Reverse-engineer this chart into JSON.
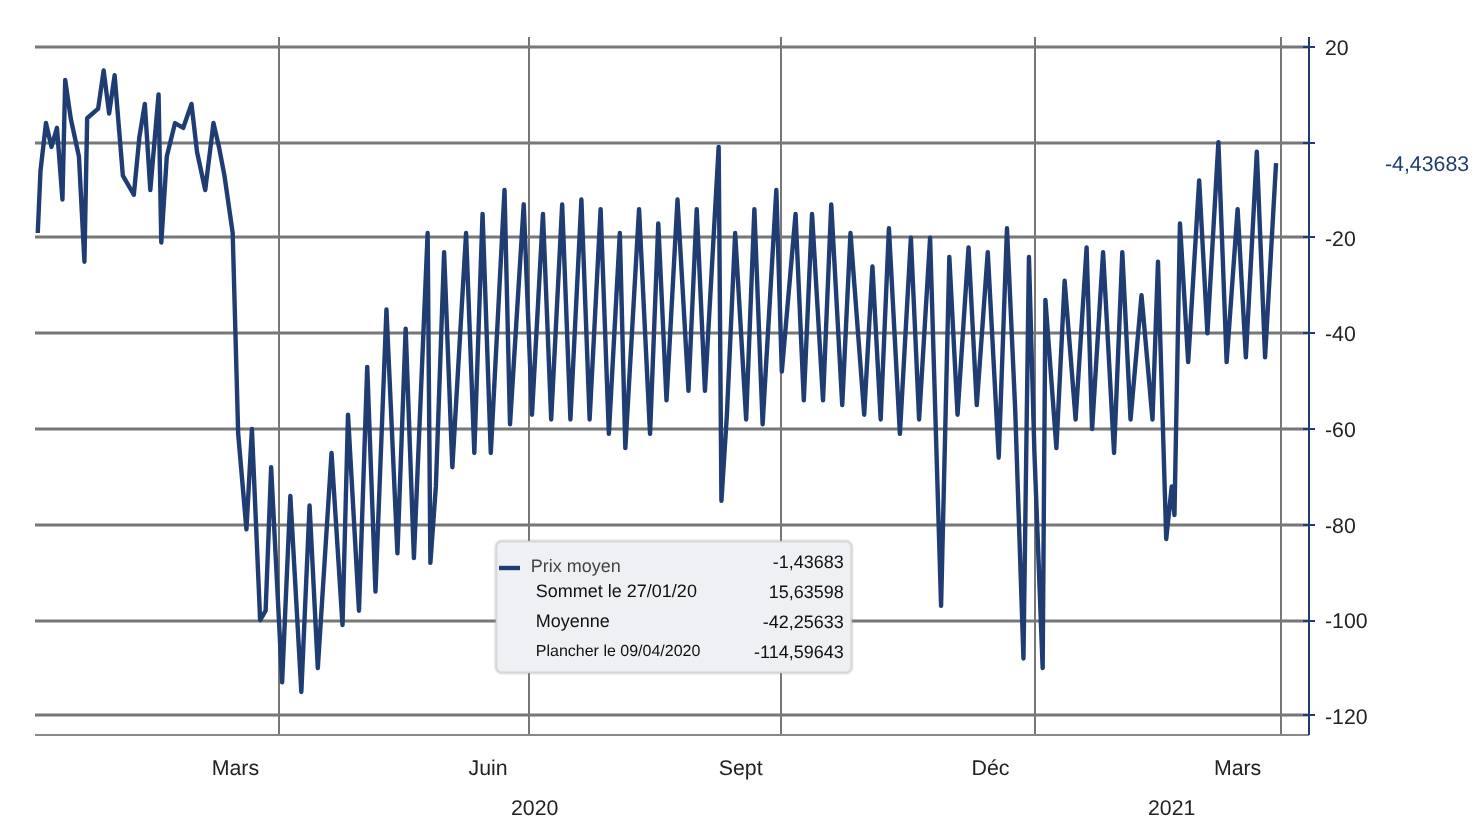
{
  "chart_data": {
    "type": "line",
    "xlim": [
      "2020-01-03",
      "2021-04-11"
    ],
    "ylim": [
      -124,
      22
    ],
    "xticks": [
      {
        "value": "2020-03-16",
        "label": "Mars"
      },
      {
        "value": "2020-06-16",
        "label": "Juin"
      },
      {
        "value": "2020-09-16",
        "label": "Sept"
      },
      {
        "value": "2020-12-16",
        "label": "Déc"
      },
      {
        "value": "2021-03-16",
        "label": "Mars"
      },
      {
        "value": "2020-04-01",
        "label": null
      },
      {
        "value": "2020-07-01",
        "label": null
      },
      {
        "value": "2020-10-01",
        "label": null
      },
      {
        "value": "2021-01-01",
        "label": null
      },
      {
        "value": "2021-04-01",
        "label": null
      }
    ],
    "yticks": [
      20,
      {
        "value": 0,
        "label": null
      },
      -20,
      -40,
      -60,
      -80,
      -100,
      -120
    ],
    "grid": true,
    "legend": "bottom",
    "series": [
      {
        "name": "Prix moyen",
        "color": "#1f3c73",
        "x": [
          "2020-01-04",
          "2020-01-05",
          "2020-01-07",
          "2020-01-09",
          "2020-01-11",
          "2020-01-13",
          "2020-01-14",
          "2020-01-16",
          "2020-01-19",
          "2020-01-21",
          "2020-01-22",
          "2020-01-26",
          "2020-01-28",
          "2020-01-30",
          "2020-02-01",
          "2020-02-04",
          "2020-02-08",
          "2020-02-10",
          "2020-02-12",
          "2020-02-14",
          "2020-02-17",
          "2020-02-18",
          "2020-02-20",
          "2020-02-23",
          "2020-02-26",
          "2020-02-29",
          "2020-03-02",
          "2020-03-05",
          "2020-03-08",
          "2020-03-10",
          "2020-03-12",
          "2020-03-14",
          "2020-03-15",
          "2020-03-17",
          "2020-03-20",
          "2020-03-22",
          "2020-03-25",
          "2020-03-27",
          "2020-03-29",
          "2020-04-02",
          "2020-04-05",
          "2020-04-09",
          "2020-04-12",
          "2020-04-15",
          "2020-04-20",
          "2020-04-24",
          "2020-04-26",
          "2020-04-30",
          "2020-05-03",
          "2020-05-06",
          "2020-05-10",
          "2020-05-14",
          "2020-05-17",
          "2020-05-20",
          "2020-05-25",
          "2020-05-26",
          "2020-05-28",
          "2020-05-31",
          "2020-06-03",
          "2020-06-08",
          "2020-06-11",
          "2020-06-14",
          "2020-06-17",
          "2020-06-22",
          "2020-06-24",
          "2020-06-29",
          "2020-07-02",
          "2020-07-06",
          "2020-07-09",
          "2020-07-13",
          "2020-07-16",
          "2020-07-20",
          "2020-07-23",
          "2020-07-27",
          "2020-07-30",
          "2020-08-03",
          "2020-08-05",
          "2020-08-10",
          "2020-08-14",
          "2020-08-17",
          "2020-08-20",
          "2020-08-24",
          "2020-08-28",
          "2020-08-31",
          "2020-09-03",
          "2020-09-08",
          "2020-09-09",
          "2020-09-11",
          "2020-09-14",
          "2020-09-18",
          "2020-09-21",
          "2020-09-24",
          "2020-09-29",
          "2020-10-01",
          "2020-10-06",
          "2020-10-09",
          "2020-10-12",
          "2020-10-16",
          "2020-10-19",
          "2020-10-23",
          "2020-10-26",
          "2020-10-31",
          "2020-11-03",
          "2020-11-06",
          "2020-11-09",
          "2020-11-13",
          "2020-11-17",
          "2020-11-20",
          "2020-11-24",
          "2020-11-28",
          "2020-12-01",
          "2020-12-04",
          "2020-12-08",
          "2020-12-11",
          "2020-12-15",
          "2020-12-19",
          "2020-12-22",
          "2020-12-25",
          "2020-12-28",
          "2020-12-30",
          "2021-01-01",
          "2021-01-04",
          "2021-01-05",
          "2021-01-09",
          "2021-01-12",
          "2021-01-16",
          "2021-01-20",
          "2021-01-22",
          "2021-01-26",
          "2021-01-30",
          "2021-02-02",
          "2021-02-05",
          "2021-02-09",
          "2021-02-13",
          "2021-02-15",
          "2021-02-18",
          "2021-02-20",
          "2021-02-21",
          "2021-02-23",
          "2021-02-26",
          "2021-03-02",
          "2021-03-05",
          "2021-03-09",
          "2021-03-12",
          "2021-03-16",
          "2021-03-19",
          "2021-03-23",
          "2021-03-26",
          "2021-03-30"
        ],
        "values": [
          -19,
          -6,
          4,
          -1,
          3,
          -12,
          13,
          5,
          -3,
          -25,
          5,
          7,
          15,
          6,
          14,
          -7,
          -11,
          1,
          8,
          -10,
          10,
          -21,
          -3,
          4,
          3,
          8,
          -2,
          -10,
          4,
          -1,
          -7,
          -15,
          -19,
          -61,
          -81,
          -60,
          -100,
          -98,
          -68,
          -113,
          -74,
          -115,
          -76,
          -110,
          -65,
          -101,
          -57,
          -98,
          -47,
          -94,
          -35,
          -86,
          -39,
          -87,
          -19,
          -88,
          -72,
          -23,
          -68,
          -19,
          -65,
          -15,
          -65,
          -10,
          -59,
          -13,
          -57,
          -15,
          -58,
          -13,
          -58,
          -12,
          -58,
          -14,
          -61,
          -19,
          -64,
          -14,
          -61,
          -17,
          -54,
          -12,
          -52,
          -14,
          -52,
          -1,
          -75,
          -57,
          -19,
          -58,
          -14,
          -59,
          -10,
          -48,
          -15,
          -54,
          -15,
          -54,
          -13,
          -55,
          -19,
          -57,
          -26,
          -58,
          -18,
          -61,
          -20,
          -58,
          -20,
          -97,
          -24,
          -57,
          -22,
          -55,
          -23,
          -66,
          -18,
          -56,
          -108,
          -24,
          -65,
          -110,
          -33,
          -64,
          -29,
          -58,
          -22,
          -60,
          -23,
          -65,
          -23,
          -58,
          -32,
          -58,
          -25,
          -83,
          -72,
          -78,
          -17,
          -46,
          -8,
          -40,
          0,
          -46,
          -14,
          -45,
          -2,
          -45,
          -4.4
        ]
      }
    ],
    "annotations": [
      "-1,43683",
      "Sommet le 27/01/20",
      "15,63598",
      "Moyenne",
      "-42,25633",
      "Plancher le 09/04/2020",
      "-114,59643",
      "-4,43683",
      "2020",
      "2021"
    ]
  }
}
